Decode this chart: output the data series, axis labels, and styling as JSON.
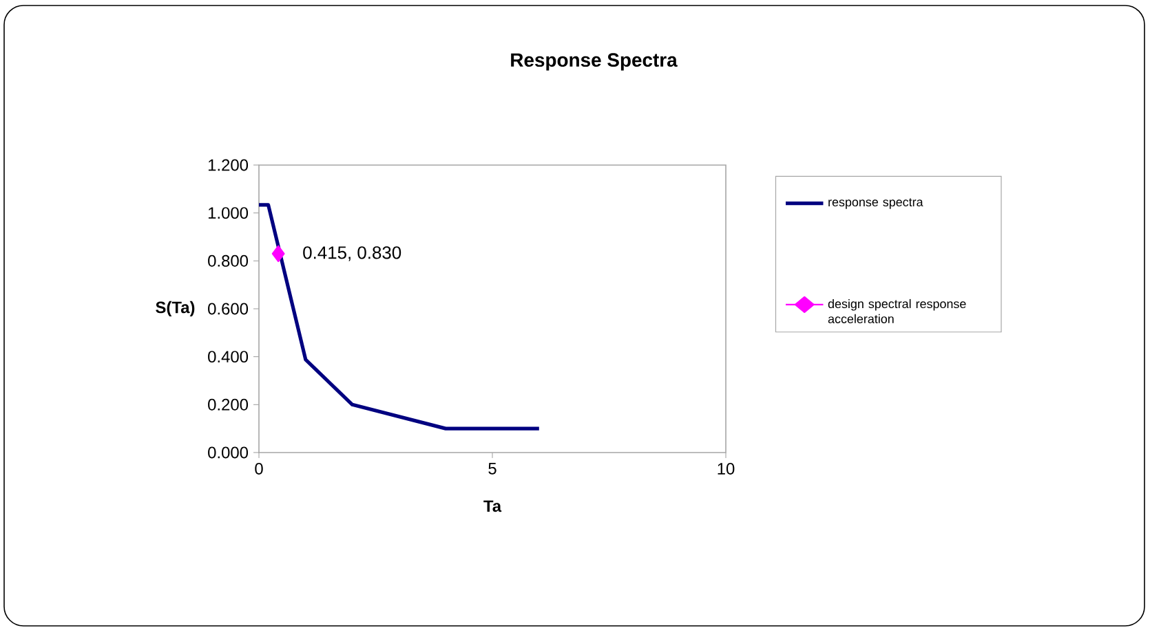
{
  "chart_data": {
    "type": "line",
    "title": "Response Spectra",
    "xlabel": "Ta",
    "ylabel": "S(Ta)",
    "xlim": [
      0,
      10
    ],
    "xticks": [
      0,
      5,
      10
    ],
    "ylim": [
      0,
      1.2
    ],
    "yticks": [
      {
        "value": 0,
        "label": "0.000"
      },
      {
        "value": 0.2,
        "label": "0.200"
      },
      {
        "value": 0.4,
        "label": "0.400"
      },
      {
        "value": 0.6,
        "label": "0.600"
      },
      {
        "value": 0.8,
        "label": "0.800"
      },
      {
        "value": 1.0,
        "label": "1.000"
      },
      {
        "value": 1.2,
        "label": "1.200"
      }
    ],
    "grid": false,
    "legend": "right",
    "series": [
      {
        "name": "response spectra",
        "color": "#000080",
        "marker": "none",
        "x": [
          0,
          0.2,
          1,
          2,
          4,
          6
        ],
        "values": [
          1.034,
          1.034,
          0.388,
          0.2,
          0.1,
          0.1
        ]
      },
      {
        "name": "design spectral response acceleration",
        "color": "#ff00ff",
        "marker": "diamond",
        "x": [
          0.415
        ],
        "values": [
          0.83
        ],
        "value_labels": [
          "0.415, 0.830"
        ]
      }
    ]
  }
}
